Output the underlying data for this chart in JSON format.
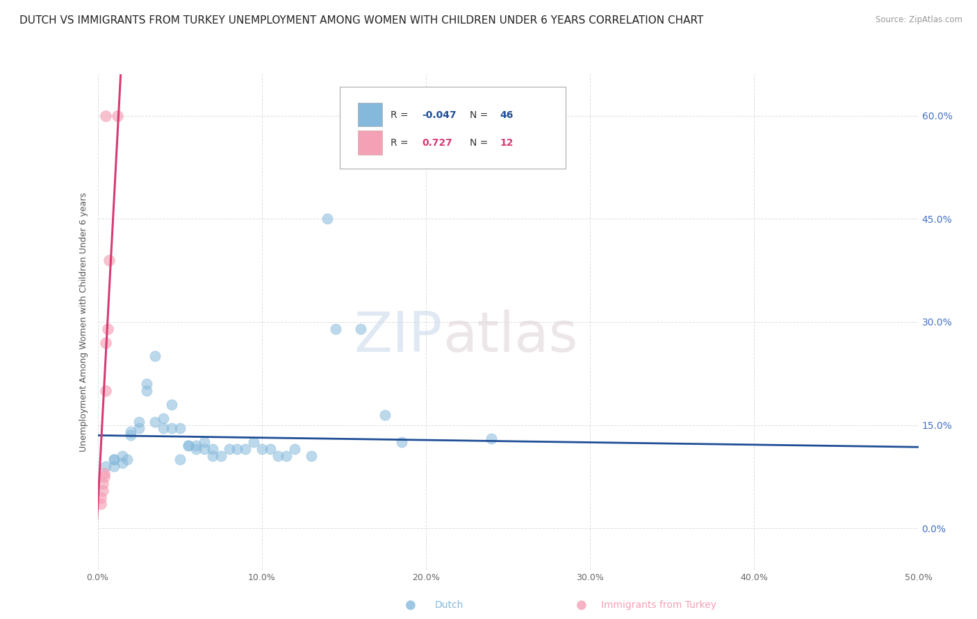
{
  "title": "DUTCH VS IMMIGRANTS FROM TURKEY UNEMPLOYMENT AMONG WOMEN WITH CHILDREN UNDER 6 YEARS CORRELATION CHART",
  "source": "Source: ZipAtlas.com",
  "ylabel": "Unemployment Among Women with Children Under 6 years",
  "xlim": [
    0.0,
    0.5
  ],
  "ylim": [
    -0.06,
    0.66
  ],
  "xticks": [
    0.0,
    0.1,
    0.2,
    0.3,
    0.4,
    0.5
  ],
  "xticklabels": [
    "0.0%",
    "10.0%",
    "20.0%",
    "30.0%",
    "40.0%",
    "50.0%"
  ],
  "yticks": [
    0.0,
    0.15,
    0.3,
    0.45,
    0.6
  ],
  "yticklabels": [
    "0.0%",
    "15.0%",
    "30.0%",
    "45.0%",
    "60.0%"
  ],
  "watermark_zip": "ZIP",
  "watermark_atlas": "atlas",
  "dutch_scatter": [
    [
      0.005,
      0.09
    ],
    [
      0.01,
      0.09
    ],
    [
      0.01,
      0.1
    ],
    [
      0.015,
      0.105
    ],
    [
      0.015,
      0.095
    ],
    [
      0.018,
      0.1
    ],
    [
      0.02,
      0.14
    ],
    [
      0.02,
      0.135
    ],
    [
      0.025,
      0.155
    ],
    [
      0.025,
      0.145
    ],
    [
      0.03,
      0.21
    ],
    [
      0.03,
      0.2
    ],
    [
      0.035,
      0.25
    ],
    [
      0.035,
      0.155
    ],
    [
      0.04,
      0.145
    ],
    [
      0.04,
      0.16
    ],
    [
      0.045,
      0.18
    ],
    [
      0.045,
      0.145
    ],
    [
      0.05,
      0.145
    ],
    [
      0.05,
      0.1
    ],
    [
      0.055,
      0.12
    ],
    [
      0.055,
      0.12
    ],
    [
      0.06,
      0.12
    ],
    [
      0.06,
      0.115
    ],
    [
      0.065,
      0.125
    ],
    [
      0.065,
      0.115
    ],
    [
      0.07,
      0.115
    ],
    [
      0.07,
      0.105
    ],
    [
      0.075,
      0.105
    ],
    [
      0.08,
      0.115
    ],
    [
      0.085,
      0.115
    ],
    [
      0.09,
      0.115
    ],
    [
      0.095,
      0.125
    ],
    [
      0.1,
      0.115
    ],
    [
      0.105,
      0.115
    ],
    [
      0.11,
      0.105
    ],
    [
      0.115,
      0.105
    ],
    [
      0.12,
      0.115
    ],
    [
      0.14,
      0.45
    ],
    [
      0.13,
      0.105
    ],
    [
      0.145,
      0.29
    ],
    [
      0.16,
      0.29
    ],
    [
      0.175,
      0.165
    ],
    [
      0.185,
      0.125
    ],
    [
      0.24,
      0.13
    ],
    [
      0.01,
      0.1
    ]
  ],
  "turkey_scatter": [
    [
      0.005,
      0.6
    ],
    [
      0.012,
      0.6
    ],
    [
      0.007,
      0.39
    ],
    [
      0.006,
      0.29
    ],
    [
      0.005,
      0.27
    ],
    [
      0.005,
      0.2
    ],
    [
      0.004,
      0.08
    ],
    [
      0.004,
      0.075
    ],
    [
      0.003,
      0.065
    ],
    [
      0.003,
      0.055
    ],
    [
      0.002,
      0.045
    ],
    [
      0.002,
      0.035
    ]
  ],
  "dutch_line_x": [
    0.0,
    0.5
  ],
  "dutch_line_y": [
    0.135,
    0.118
  ],
  "turkey_line_x": [
    -0.002,
    0.014
  ],
  "turkey_line_y": [
    -0.06,
    0.66
  ],
  "dutch_color": "#85b9db",
  "turkey_color": "#f4a0b5",
  "dutch_line_color": "#1f4e96",
  "turkey_line_color": "#d63b74",
  "background_color": "#ffffff",
  "grid_color": "#d5d5d5",
  "title_fontsize": 11,
  "axis_fontsize": 9,
  "right_label_color": "#4472c4",
  "legend_dutch_r": "R = ",
  "legend_dutch_rv": "-0.047",
  "legend_dutch_n": "  N = ",
  "legend_dutch_nv": "46",
  "legend_turkey_r": "R =  ",
  "legend_turkey_rv": "0.727",
  "legend_turkey_n": "  N = ",
  "legend_turkey_nv": "12"
}
